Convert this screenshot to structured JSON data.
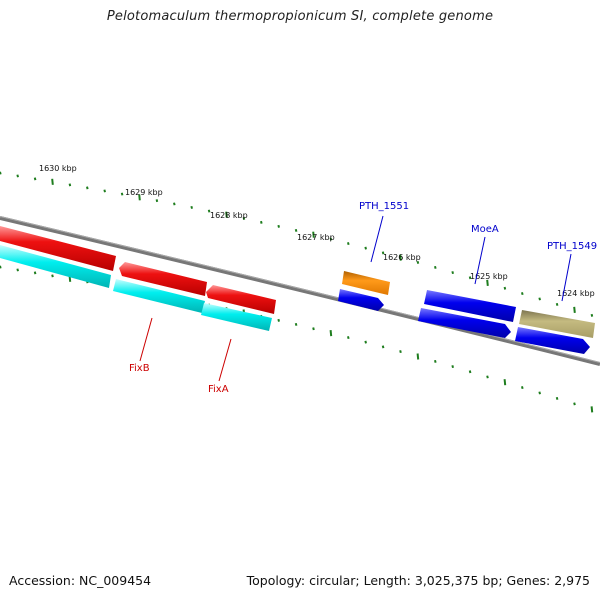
{
  "title": "Pelotomaculum thermopropionicum SI, complete genome",
  "footer": {
    "accession": "Accession: NC_009454",
    "topology": "Topology: circular; Length: 3,025,375 bp; Genes: 2,975"
  },
  "colors": {
    "backbone": "#7a7a7a",
    "ticks": "#1e7d1e",
    "red": "#e60000",
    "cyan": "#00e8e8",
    "blue": "#0000e6",
    "orange": "#ff8c00",
    "khaki": "#b4aa6e",
    "label_red": "#cc0000",
    "label_blue": "#0000cc"
  },
  "kbp_labels": [
    "1630 kbp",
    "1629 kbp",
    "1628 kbp",
    "1627 kbp",
    "1626 kbp",
    "1625 kbp",
    "1624 kbp"
  ],
  "gene_labels": [
    {
      "name": "PTH_1551",
      "color": "blue"
    },
    {
      "name": "MoeA",
      "color": "blue"
    },
    {
      "name": "PTH_1549",
      "color": "blue"
    },
    {
      "name": "FixB",
      "color": "red"
    },
    {
      "name": "FixA",
      "color": "red"
    }
  ]
}
